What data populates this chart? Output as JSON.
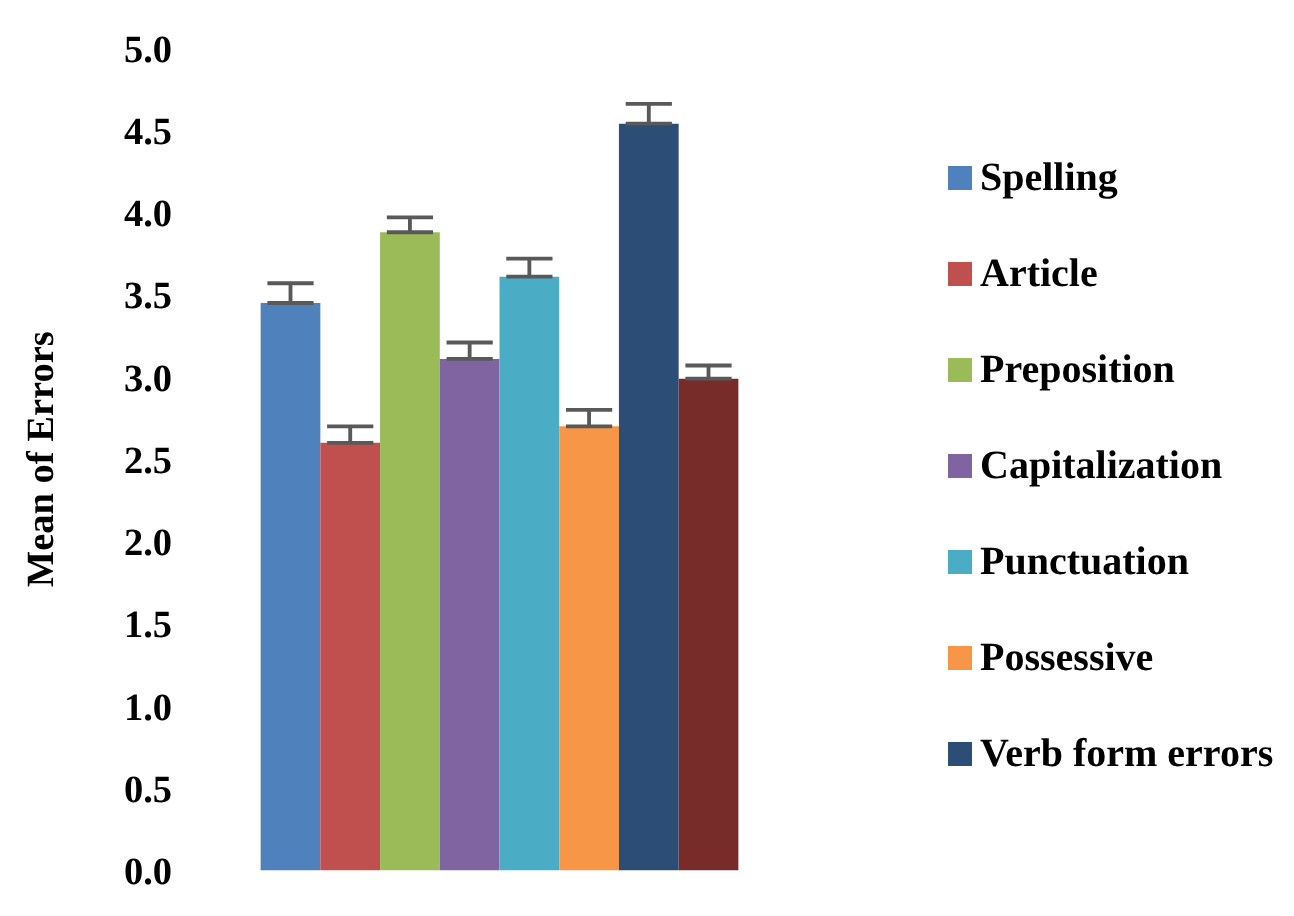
{
  "chart_data": {
    "type": "bar",
    "ylabel": "Mean of Errors",
    "categories": [
      null
    ],
    "ylim": [
      0,
      5
    ],
    "yticks": [
      {
        "value": 0,
        "label": "0.0"
      },
      {
        "value": 0.5,
        "label": "0.5"
      },
      {
        "value": 1,
        "label": "1.0"
      },
      {
        "value": 1.5,
        "label": "1.5"
      },
      {
        "value": 2,
        "label": "2.0"
      },
      {
        "value": 2.5,
        "label": "2.5"
      },
      {
        "value": 3,
        "label": "3.0"
      },
      {
        "value": 3.5,
        "label": "3.5"
      },
      {
        "value": 4,
        "label": "4.0"
      },
      {
        "value": 4.5,
        "label": "4.5"
      },
      {
        "value": 5,
        "label": "5.0"
      }
    ],
    "legend": "right",
    "series": [
      {
        "name": "Spelling",
        "color": "#4f81bd",
        "values": [
          3.45
        ],
        "errors": [
          [
            3.45,
            3.57
          ]
        ]
      },
      {
        "name": "Article",
        "color": "#c0504d",
        "values": [
          2.6
        ],
        "errors": [
          [
            2.6,
            2.7
          ]
        ]
      },
      {
        "name": "Preposition",
        "color": "#9bbb59",
        "values": [
          3.88
        ],
        "errors": [
          [
            3.88,
            3.97
          ]
        ]
      },
      {
        "name": "Capitalization",
        "color": "#8064a2",
        "values": [
          3.11
        ],
        "errors": [
          [
            3.11,
            3.21
          ]
        ]
      },
      {
        "name": "Punctuation",
        "color": "#4bacc6",
        "values": [
          3.61
        ],
        "errors": [
          [
            3.61,
            3.72
          ]
        ]
      },
      {
        "name": "Possessive",
        "color": "#f79646",
        "values": [
          2.7
        ],
        "errors": [
          [
            2.7,
            2.8
          ]
        ]
      },
      {
        "name": "Verb form errors",
        "color": "#2c4d75",
        "values": [
          4.54
        ],
        "errors": [
          [
            4.54,
            4.66
          ]
        ]
      },
      {
        "color": "#772c2a",
        "values": [
          2.99
        ],
        "errors": [
          [
            2.99,
            3.07
          ]
        ]
      }
    ]
  }
}
